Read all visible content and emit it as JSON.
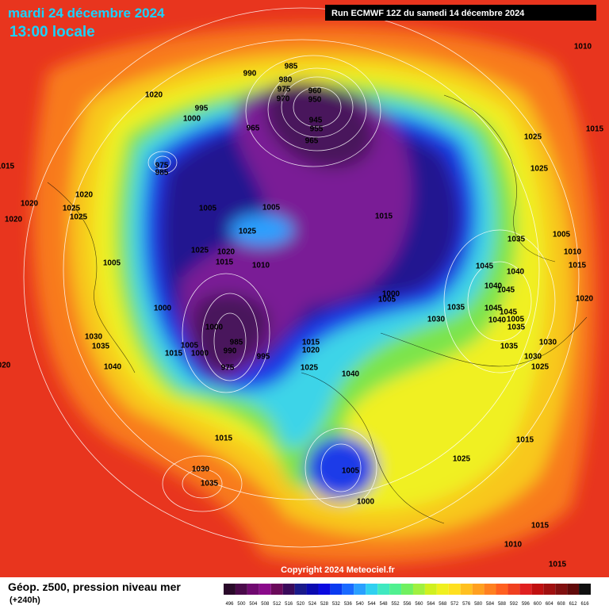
{
  "header": {
    "title": "mardi 24 décembre 2024",
    "subtitle": "13:00 locale",
    "run": "Run ECMWF 12Z du samedi 14 décembre 2024"
  },
  "copyright": "Copyright 2024 Meteociel.fr",
  "footer": {
    "title": "Géop. z500, pression niveau mer",
    "lead": "(+240h)"
  },
  "legend": {
    "levels": [
      496,
      500,
      504,
      508,
      512,
      516,
      520,
      524,
      528,
      532,
      536,
      540,
      544,
      548,
      552,
      556,
      560,
      564,
      568,
      572,
      576,
      580,
      584,
      588,
      592,
      596,
      600,
      604,
      608,
      612,
      616
    ],
    "colors": [
      "#2a0a2a",
      "#4a0a4a",
      "#700a70",
      "#8a0a8a",
      "#6a0a5a",
      "#3a0a5a",
      "#1a1a8a",
      "#0a0ab0",
      "#0a0ae0",
      "#0a3af0",
      "#1a6aff",
      "#2aa0ff",
      "#30d0f0",
      "#40e8c0",
      "#50f090",
      "#70f060",
      "#a0f040",
      "#d0f020",
      "#f0f020",
      "#ffe020",
      "#ffc020",
      "#ffa020",
      "#ff8020",
      "#ff6020",
      "#f04020",
      "#e02020",
      "#c01010",
      "#a01010",
      "#801010",
      "#600a0a",
      "#101010"
    ]
  },
  "pressure_labels": [
    "1010",
    "1020",
    "990",
    "985",
    "980",
    "975",
    "970",
    "960",
    "950",
    "995",
    "1000",
    "965",
    "945",
    "955",
    "965",
    "1015",
    "1025",
    "1015",
    "1025",
    "975",
    "985",
    "1020",
    "1020",
    "1025",
    "1025",
    "1020",
    "1005",
    "1005",
    "1015",
    "1025",
    "1035",
    "1005",
    "1025",
    "1020",
    "1010",
    "1015",
    "1010",
    "1005",
    "1045",
    "1015",
    "1040",
    "1040",
    "1045",
    "1000",
    "1005",
    "1020",
    "1000",
    "1035",
    "1045",
    "1045",
    "1030",
    "1040",
    "1005",
    "1035",
    "1000",
    "985",
    "1015",
    "1030",
    "1005",
    "1035",
    "990",
    "1020",
    "1000",
    "1035",
    "1030",
    "1015",
    "995",
    "1030",
    "1025",
    "975",
    "1025",
    "1040",
    "020",
    "1040",
    "1015",
    "1015",
    "1025",
    "1030",
    "1005",
    "1035",
    "1000",
    "1015",
    "1010",
    "1015"
  ]
}
